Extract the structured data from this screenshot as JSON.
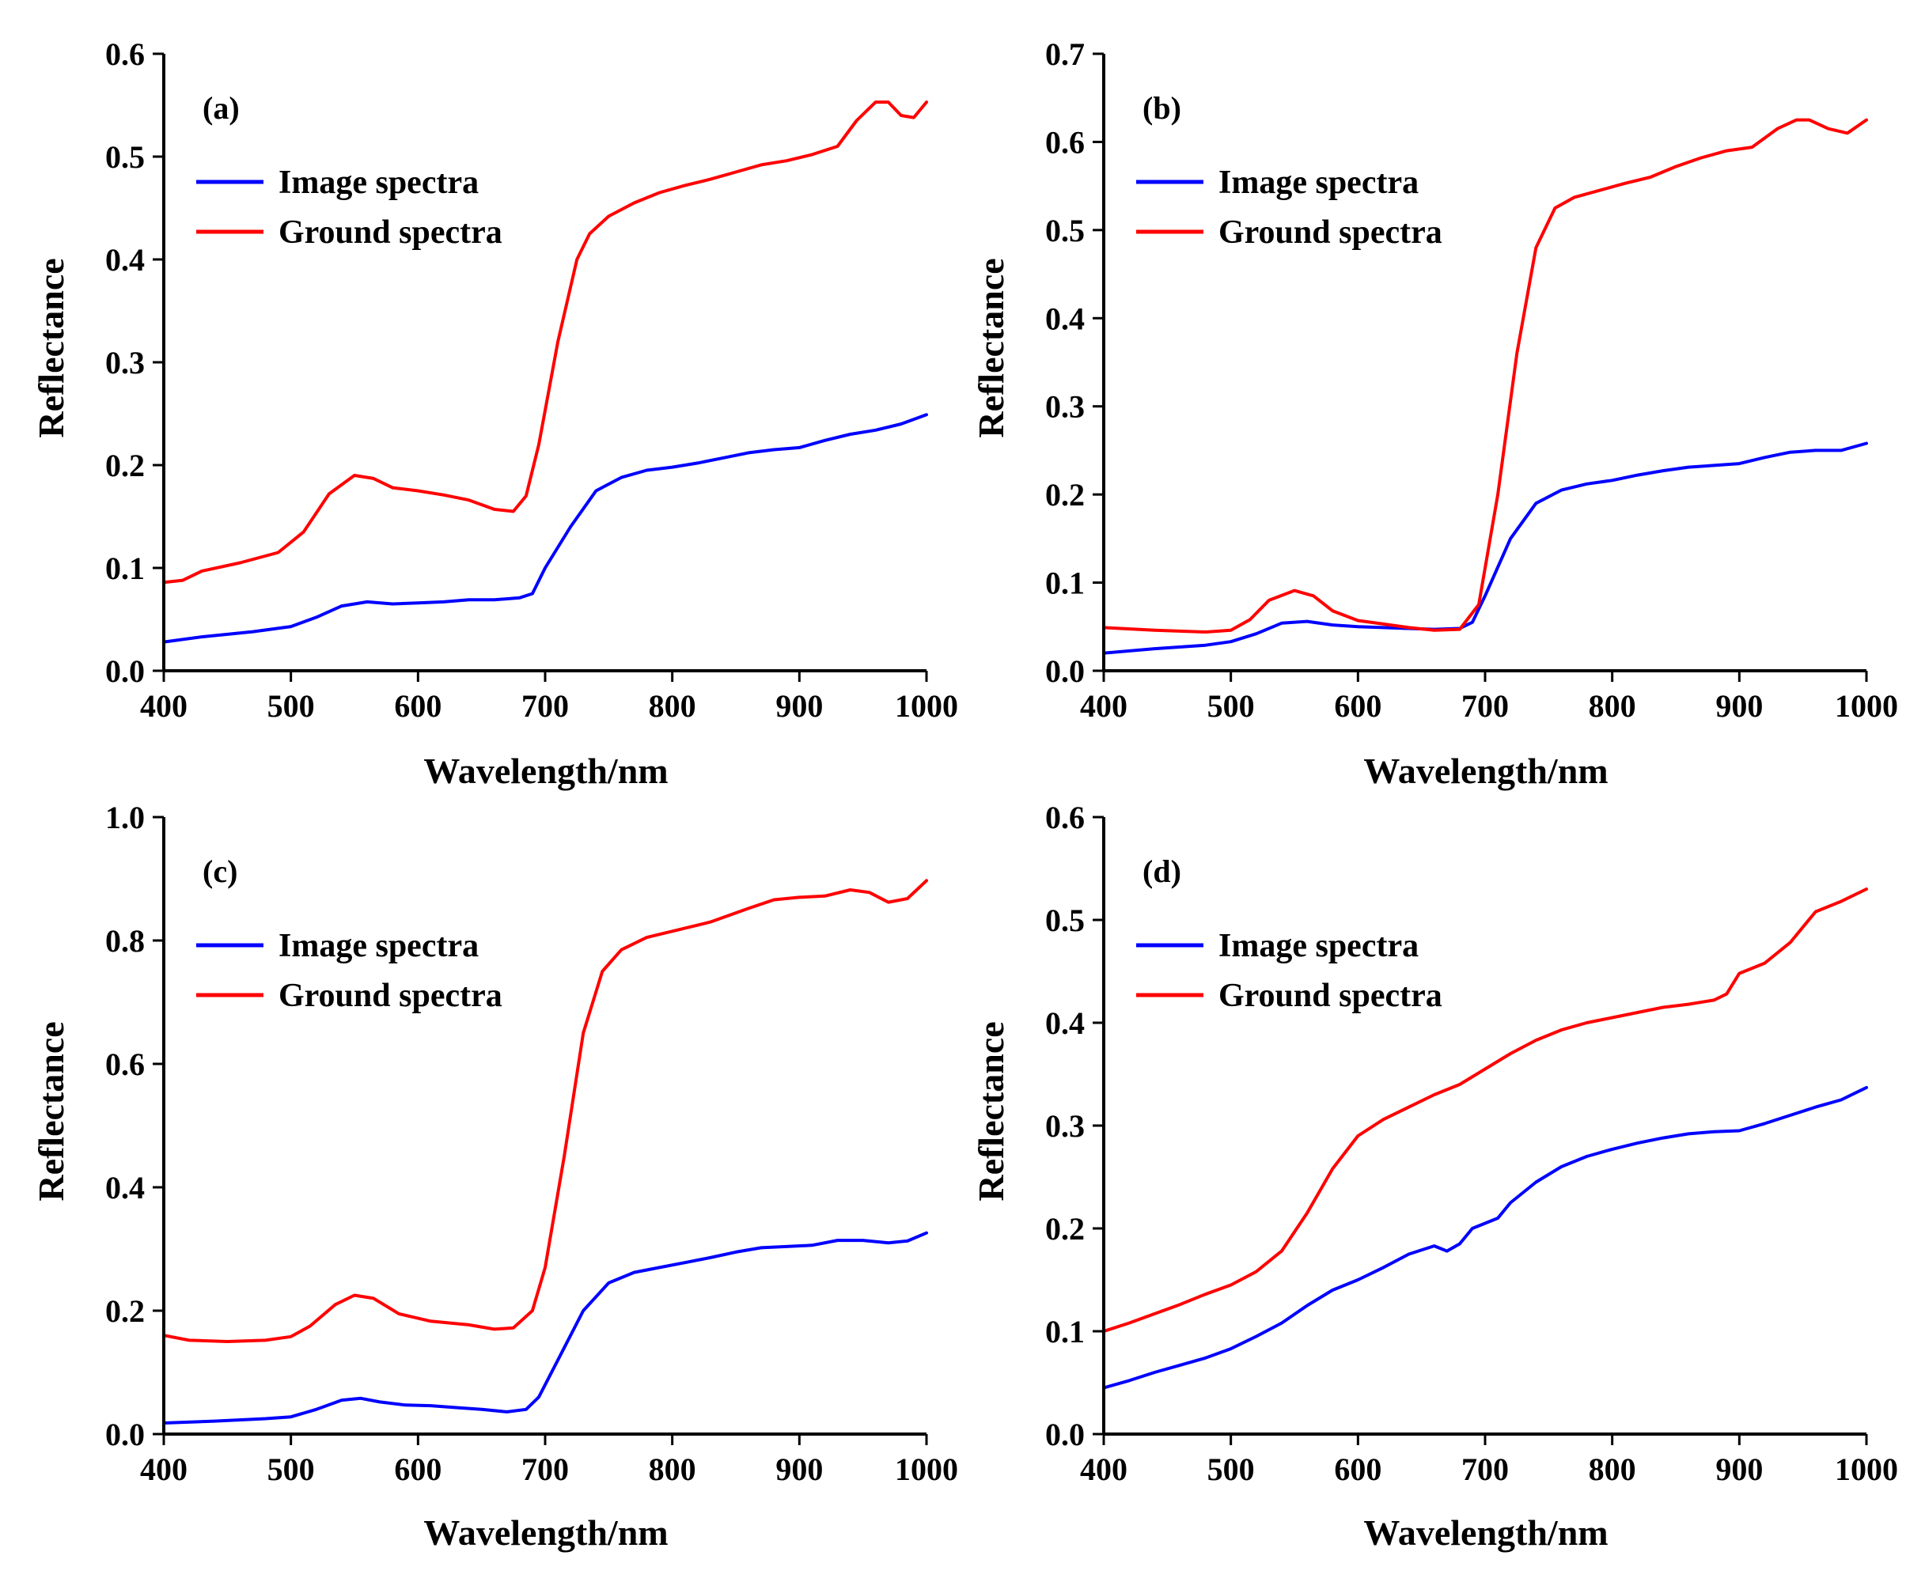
{
  "chart_data": [
    {
      "type": "line",
      "panel_label": "(a)",
      "xlabel": "Wavelength/nm",
      "ylabel": "Reflectance",
      "xlim": [
        400,
        1000
      ],
      "ylim": [
        0,
        0.6
      ],
      "xticks": [
        "400",
        "500",
        "600",
        "700",
        "800",
        "900",
        "1000"
      ],
      "yticks": [
        "0.0",
        "0.1",
        "0.2",
        "0.3",
        "0.4",
        "0.5",
        "0.6"
      ],
      "legend": "top-left",
      "series": [
        {
          "name": "Image spectra",
          "color": "#0000ff",
          "x": [
            400,
            430,
            470,
            500,
            520,
            540,
            560,
            580,
            600,
            620,
            640,
            660,
            680,
            690,
            700,
            720,
            740,
            760,
            780,
            800,
            820,
            840,
            860,
            880,
            900,
            920,
            940,
            960,
            980,
            1000
          ],
          "y": [
            0.028,
            0.033,
            0.038,
            0.043,
            0.052,
            0.063,
            0.067,
            0.065,
            0.066,
            0.067,
            0.069,
            0.069,
            0.071,
            0.075,
            0.1,
            0.14,
            0.175,
            0.188,
            0.195,
            0.198,
            0.202,
            0.207,
            0.212,
            0.215,
            0.217,
            0.224,
            0.23,
            0.234,
            0.24,
            0.249
          ]
        },
        {
          "name": "Ground spectra",
          "color": "#ff0000",
          "x": [
            400,
            415,
            430,
            460,
            490,
            510,
            530,
            550,
            565,
            580,
            600,
            620,
            640,
            660,
            675,
            685,
            695,
            710,
            725,
            735,
            750,
            770,
            790,
            810,
            830,
            850,
            870,
            890,
            910,
            930,
            945,
            960,
            970,
            980,
            990,
            1000
          ],
          "y": [
            0.086,
            0.088,
            0.097,
            0.105,
            0.115,
            0.135,
            0.172,
            0.19,
            0.187,
            0.178,
            0.175,
            0.171,
            0.166,
            0.157,
            0.155,
            0.17,
            0.22,
            0.32,
            0.4,
            0.425,
            0.442,
            0.455,
            0.465,
            0.472,
            0.478,
            0.485,
            0.492,
            0.496,
            0.502,
            0.51,
            0.535,
            0.553,
            0.553,
            0.54,
            0.538,
            0.553
          ]
        }
      ]
    },
    {
      "type": "line",
      "panel_label": "(b)",
      "xlabel": "Wavelength/nm",
      "ylabel": "Reflectance",
      "xlim": [
        400,
        1000
      ],
      "ylim": [
        0,
        0.7
      ],
      "xticks": [
        "400",
        "500",
        "600",
        "700",
        "800",
        "900",
        "1000"
      ],
      "yticks": [
        "0.0",
        "0.1",
        "0.2",
        "0.3",
        "0.4",
        "0.5",
        "0.6",
        "0.7"
      ],
      "legend": "top-left",
      "series": [
        {
          "name": "Image spectra",
          "color": "#0000ff",
          "x": [
            400,
            440,
            480,
            500,
            520,
            540,
            560,
            580,
            600,
            620,
            640,
            660,
            680,
            690,
            700,
            720,
            740,
            760,
            780,
            800,
            820,
            840,
            860,
            880,
            900,
            920,
            940,
            960,
            980,
            1000
          ],
          "y": [
            0.02,
            0.025,
            0.029,
            0.033,
            0.042,
            0.054,
            0.056,
            0.052,
            0.05,
            0.049,
            0.048,
            0.047,
            0.048,
            0.055,
            0.085,
            0.15,
            0.19,
            0.205,
            0.212,
            0.216,
            0.222,
            0.227,
            0.231,
            0.233,
            0.235,
            0.242,
            0.248,
            0.25,
            0.25,
            0.258
          ]
        },
        {
          "name": "Ground spectra",
          "color": "#ff0000",
          "x": [
            400,
            440,
            480,
            500,
            515,
            530,
            550,
            565,
            580,
            600,
            620,
            640,
            660,
            680,
            695,
            710,
            725,
            740,
            755,
            770,
            790,
            810,
            830,
            850,
            870,
            890,
            910,
            930,
            945,
            955,
            970,
            985,
            1000
          ],
          "y": [
            0.049,
            0.046,
            0.044,
            0.046,
            0.058,
            0.08,
            0.091,
            0.085,
            0.068,
            0.057,
            0.053,
            0.049,
            0.046,
            0.047,
            0.075,
            0.2,
            0.36,
            0.48,
            0.525,
            0.537,
            0.545,
            0.553,
            0.56,
            0.572,
            0.582,
            0.59,
            0.594,
            0.615,
            0.625,
            0.625,
            0.615,
            0.61,
            0.625
          ]
        }
      ]
    },
    {
      "type": "line",
      "panel_label": "(c)",
      "xlabel": "Wavelength/nm",
      "ylabel": "Reflectance",
      "xlim": [
        400,
        1000
      ],
      "ylim": [
        0,
        1.0
      ],
      "xticks": [
        "400",
        "500",
        "600",
        "700",
        "800",
        "900",
        "1000"
      ],
      "yticks": [
        "0.0",
        "0.2",
        "0.4",
        "0.6",
        "0.8",
        "1.0"
      ],
      "legend": "top-left",
      "series": [
        {
          "name": "Image spectra",
          "color": "#0000ff",
          "x": [
            400,
            440,
            480,
            500,
            520,
            540,
            555,
            570,
            590,
            610,
            630,
            650,
            670,
            685,
            695,
            710,
            730,
            750,
            770,
            790,
            810,
            830,
            850,
            870,
            890,
            910,
            930,
            950,
            970,
            985,
            1000
          ],
          "y": [
            0.018,
            0.021,
            0.025,
            0.028,
            0.04,
            0.055,
            0.058,
            0.052,
            0.047,
            0.046,
            0.043,
            0.04,
            0.036,
            0.04,
            0.06,
            0.12,
            0.2,
            0.245,
            0.262,
            0.27,
            0.278,
            0.286,
            0.295,
            0.302,
            0.304,
            0.306,
            0.314,
            0.314,
            0.31,
            0.313,
            0.326
          ]
        },
        {
          "name": "Ground spectra",
          "color": "#ff0000",
          "x": [
            400,
            420,
            450,
            480,
            500,
            515,
            535,
            550,
            565,
            585,
            610,
            640,
            660,
            675,
            690,
            700,
            715,
            730,
            745,
            760,
            780,
            800,
            830,
            860,
            880,
            900,
            920,
            940,
            955,
            970,
            985,
            1000
          ],
          "y": [
            0.16,
            0.152,
            0.15,
            0.152,
            0.158,
            0.175,
            0.21,
            0.225,
            0.22,
            0.195,
            0.183,
            0.177,
            0.17,
            0.172,
            0.2,
            0.27,
            0.45,
            0.65,
            0.75,
            0.785,
            0.805,
            0.815,
            0.83,
            0.852,
            0.866,
            0.87,
            0.872,
            0.882,
            0.878,
            0.862,
            0.868,
            0.897
          ]
        }
      ]
    },
    {
      "type": "line",
      "panel_label": "(d)",
      "xlabel": "Wavelength/nm",
      "ylabel": "Reflectance",
      "xlim": [
        400,
        1000
      ],
      "ylim": [
        0,
        0.6
      ],
      "xticks": [
        "400",
        "500",
        "600",
        "700",
        "800",
        "900",
        "1000"
      ],
      "yticks": [
        "0.0",
        "0.1",
        "0.2",
        "0.3",
        "0.4",
        "0.5",
        "0.6"
      ],
      "legend": "top-left",
      "series": [
        {
          "name": "Image spectra",
          "color": "#0000ff",
          "x": [
            400,
            420,
            440,
            460,
            480,
            500,
            520,
            540,
            560,
            580,
            600,
            620,
            640,
            660,
            670,
            680,
            690,
            700,
            710,
            720,
            740,
            760,
            780,
            800,
            820,
            840,
            860,
            880,
            900,
            920,
            940,
            960,
            980,
            1000
          ],
          "y": [
            0.045,
            0.052,
            0.06,
            0.067,
            0.074,
            0.083,
            0.095,
            0.108,
            0.125,
            0.14,
            0.15,
            0.162,
            0.175,
            0.183,
            0.178,
            0.185,
            0.2,
            0.205,
            0.21,
            0.225,
            0.245,
            0.26,
            0.27,
            0.277,
            0.283,
            0.288,
            0.292,
            0.294,
            0.295,
            0.302,
            0.31,
            0.318,
            0.325,
            0.337
          ]
        },
        {
          "name": "Ground spectra",
          "color": "#ff0000",
          "x": [
            400,
            420,
            440,
            460,
            480,
            500,
            520,
            540,
            560,
            580,
            600,
            620,
            640,
            660,
            680,
            700,
            720,
            740,
            760,
            780,
            800,
            820,
            840,
            860,
            880,
            890,
            900,
            920,
            940,
            960,
            980,
            1000
          ],
          "y": [
            0.1,
            0.108,
            0.117,
            0.126,
            0.136,
            0.145,
            0.158,
            0.178,
            0.215,
            0.258,
            0.29,
            0.306,
            0.318,
            0.33,
            0.34,
            0.355,
            0.37,
            0.383,
            0.393,
            0.4,
            0.405,
            0.41,
            0.415,
            0.418,
            0.422,
            0.428,
            0.448,
            0.458,
            0.478,
            0.508,
            0.518,
            0.53
          ]
        }
      ]
    }
  ]
}
